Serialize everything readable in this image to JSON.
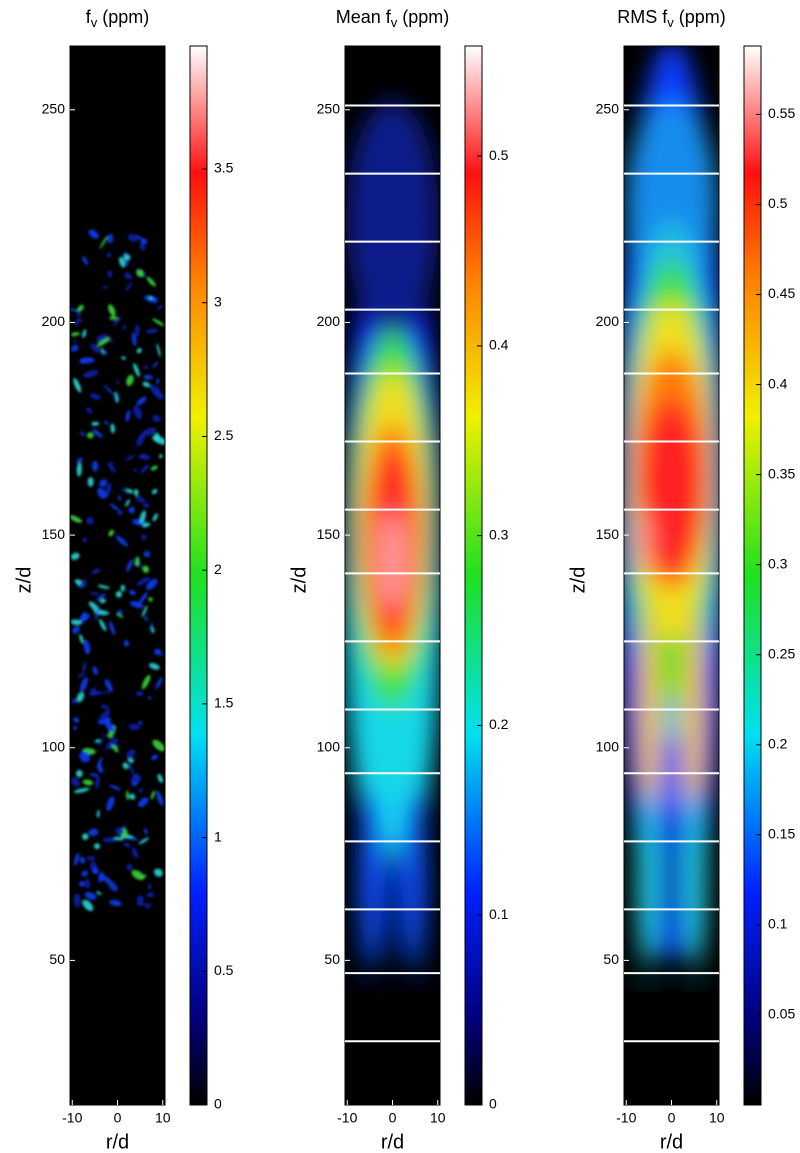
{
  "chart_data": [
    {
      "type": "heatmap",
      "title": {
        "main": "f",
        "sub": "v",
        "rest": "(ppm)"
      },
      "xlabel": "r/d",
      "ylabel": "z/d",
      "xlim": [
        -10.5,
        10.5
      ],
      "xticks": [
        -10,
        0,
        10
      ],
      "ylim": [
        16,
        265
      ],
      "yticks": [
        50,
        100,
        150,
        200,
        250
      ],
      "colorbar": {
        "lim": [
          0,
          3.96
        ],
        "ticks": [
          0,
          0.5,
          1,
          1.5,
          2,
          2.5,
          3,
          3.5
        ]
      }
    },
    {
      "type": "heatmap",
      "title": {
        "main": "Mean f",
        "sub": "v",
        "rest": "(ppm)"
      },
      "xlabel": "r/d",
      "ylabel": "z/d",
      "xlim": [
        -10.5,
        10.5
      ],
      "xticks": [
        -10,
        0,
        10
      ],
      "ylim": [
        16,
        265
      ],
      "yticks": [
        50,
        100,
        150,
        200,
        250
      ],
      "colorbar": {
        "lim": [
          0,
          0.558
        ],
        "ticks": [
          0,
          0.1,
          0.2,
          0.3,
          0.4,
          0.5
        ]
      },
      "lines_z": [
        251,
        235,
        219,
        203,
        188,
        172,
        156,
        141,
        125,
        109,
        94,
        78,
        62,
        47,
        31
      ]
    },
    {
      "type": "heatmap",
      "title": {
        "main": "RMS f",
        "sub": "v",
        "rest": "(ppm)"
      },
      "xlabel": "r/d",
      "ylabel": "z/d",
      "xlim": [
        -10.5,
        10.5
      ],
      "xticks": [
        -10,
        0,
        10
      ],
      "ylim": [
        16,
        265
      ],
      "yticks": [
        50,
        100,
        150,
        200,
        250
      ],
      "colorbar": {
        "lim": [
          0,
          0.588
        ],
        "ticks": [
          0.05,
          0.1,
          0.15,
          0.2,
          0.25,
          0.3,
          0.35,
          0.4,
          0.45,
          0.5,
          0.55
        ]
      },
      "lines_z": [
        251,
        235,
        219,
        203,
        188,
        172,
        156,
        141,
        125,
        109,
        94,
        78,
        62,
        47,
        31
      ]
    }
  ]
}
